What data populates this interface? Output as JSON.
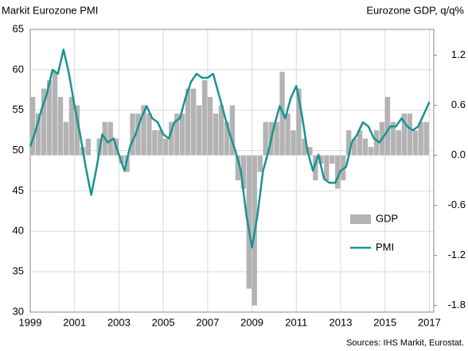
{
  "chart_data": {
    "type": "bar-line",
    "title": "Markit Eurozone PMI",
    "y2_title": "Eurozone GDP, q/q%",
    "source": "Sources: IHS Markit, Eurostat.",
    "x": [
      1999,
      1999.25,
      1999.5,
      1999.75,
      2000,
      2000.25,
      2000.5,
      2000.75,
      2001,
      2001.25,
      2001.5,
      2001.75,
      2002,
      2002.25,
      2002.5,
      2002.75,
      2003,
      2003.25,
      2003.5,
      2003.75,
      2004,
      2004.25,
      2004.5,
      2004.75,
      2005,
      2005.25,
      2005.5,
      2005.75,
      2006,
      2006.25,
      2006.5,
      2006.75,
      2007,
      2007.25,
      2007.5,
      2007.75,
      2008,
      2008.25,
      2008.5,
      2008.75,
      2009,
      2009.25,
      2009.5,
      2009.75,
      2010,
      2010.25,
      2010.5,
      2010.75,
      2011,
      2011.25,
      2011.5,
      2011.75,
      2012,
      2012.25,
      2012.5,
      2012.75,
      2013,
      2013.25,
      2013.5,
      2013.75,
      2014,
      2014.25,
      2014.5,
      2014.75,
      2015,
      2015.25,
      2015.5,
      2015.75,
      2016,
      2016.25,
      2016.5,
      2016.75,
      2017
    ],
    "series": [
      {
        "name": "GDP",
        "type": "bar",
        "axis": "y2",
        "color": "#b3b3b3",
        "values": [
          0.7,
          0.5,
          0.8,
          0.9,
          1.0,
          0.7,
          0.4,
          0.7,
          0.6,
          0.1,
          0.2,
          0.0,
          0.2,
          0.4,
          0.4,
          0.2,
          -0.1,
          -0.2,
          0.5,
          0.5,
          0.6,
          0.5,
          0.3,
          0.3,
          0.2,
          0.4,
          0.5,
          0.5,
          0.8,
          0.8,
          0.6,
          0.9,
          0.7,
          0.5,
          0.6,
          0.4,
          0.6,
          -0.3,
          -0.4,
          -1.6,
          -1.8,
          -0.2,
          0.4,
          0.4,
          0.4,
          1.0,
          0.5,
          0.3,
          0.8,
          0.2,
          0.1,
          -0.3,
          -0.1,
          -0.3,
          -0.1,
          -0.4,
          -0.3,
          0.3,
          0.2,
          0.3,
          0.2,
          0.1,
          0.3,
          0.4,
          0.7,
          0.4,
          0.3,
          0.5,
          0.5,
          0.3,
          0.4,
          0.4,
          null
        ]
      },
      {
        "name": "PMI",
        "type": "line",
        "color": "#1a9391",
        "values": [
          50.5,
          52.5,
          55,
          57,
          60,
          59.5,
          62.5,
          59.5,
          55.5,
          52,
          48,
          44.5,
          48,
          52,
          51,
          51.5,
          49.5,
          47.5,
          50.5,
          52,
          54,
          55.5,
          54,
          53.5,
          52,
          51.5,
          53.5,
          54,
          56.5,
          58.5,
          59.5,
          59,
          59,
          59.5,
          57,
          54.5,
          52,
          50,
          47.5,
          42,
          38,
          42,
          47.5,
          50,
          53,
          55.5,
          54,
          56.5,
          58,
          54.5,
          50,
          47.5,
          49.5,
          46.5,
          46,
          46,
          47.5,
          48,
          51,
          52,
          53.5,
          53,
          51.5,
          51,
          52,
          53,
          53,
          54,
          53,
          52.5,
          53,
          54.5,
          56
        ]
      }
    ],
    "xlim": [
      1999,
      2017.2
    ],
    "xticks": [
      1999,
      2001,
      2003,
      2005,
      2007,
      2009,
      2011,
      2013,
      2015,
      2017
    ],
    "ylim": [
      30,
      65
    ],
    "yticks": [
      30,
      35,
      40,
      45,
      50,
      55,
      60,
      65
    ],
    "y2lim": [
      -1.88,
      1.51
    ],
    "y2ticks": [
      -1.8,
      -1.2,
      -0.6,
      {
        "value": 0,
        "label": "0.0"
      },
      0.6,
      1.2
    ],
    "grid": true,
    "legend": "right"
  }
}
